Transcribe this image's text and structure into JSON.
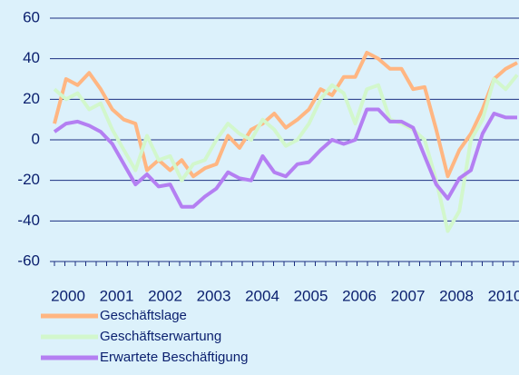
{
  "chart_data": {
    "type": "line",
    "x_labels": [
      "2000",
      "2001",
      "2002",
      "2003",
      "2004",
      "2005",
      "2006",
      "2007",
      "2008",
      "2010"
    ],
    "ylim": [
      -60,
      60
    ],
    "yticks": [
      -60,
      -40,
      -20,
      0,
      20,
      40,
      60
    ],
    "grid": true,
    "series": [
      {
        "name": "Geschäftslage",
        "color": "#ffb682",
        "values": [
          8,
          30,
          27,
          33,
          25,
          15,
          10,
          8,
          -15,
          -10,
          -15,
          -10,
          -18,
          -14,
          -12,
          2,
          -4,
          5,
          8,
          13,
          6,
          10,
          15,
          25,
          22,
          31,
          31,
          43,
          40,
          35,
          35,
          25,
          26,
          5,
          -18,
          -5,
          3,
          15,
          30,
          35,
          38
        ]
      },
      {
        "name": "Geschäftserwartung",
        "color": "#d2f7cc",
        "values": [
          25,
          20,
          23,
          15,
          18,
          5,
          -5,
          -15,
          2,
          -10,
          -8,
          -20,
          -12,
          -10,
          0,
          8,
          3,
          0,
          10,
          5,
          -3,
          0,
          8,
          20,
          27,
          23,
          8,
          25,
          27,
          10,
          8,
          5,
          0,
          -20,
          -45,
          -35,
          0,
          10,
          30,
          25,
          32
        ]
      },
      {
        "name": "Erwartete Beschäftigung",
        "color": "#b47ff2",
        "values": [
          4,
          8,
          9,
          7,
          4,
          -2,
          -12,
          -22,
          -17,
          -23,
          -22,
          -33,
          -33,
          -28,
          -24,
          -16,
          -19,
          -20,
          -8,
          -16,
          -18,
          -12,
          -11,
          -5,
          0,
          -2,
          0,
          15,
          15,
          9,
          9,
          6,
          -8,
          -22,
          -29,
          -19,
          -15,
          3,
          13,
          11,
          11
        ]
      }
    ]
  }
}
